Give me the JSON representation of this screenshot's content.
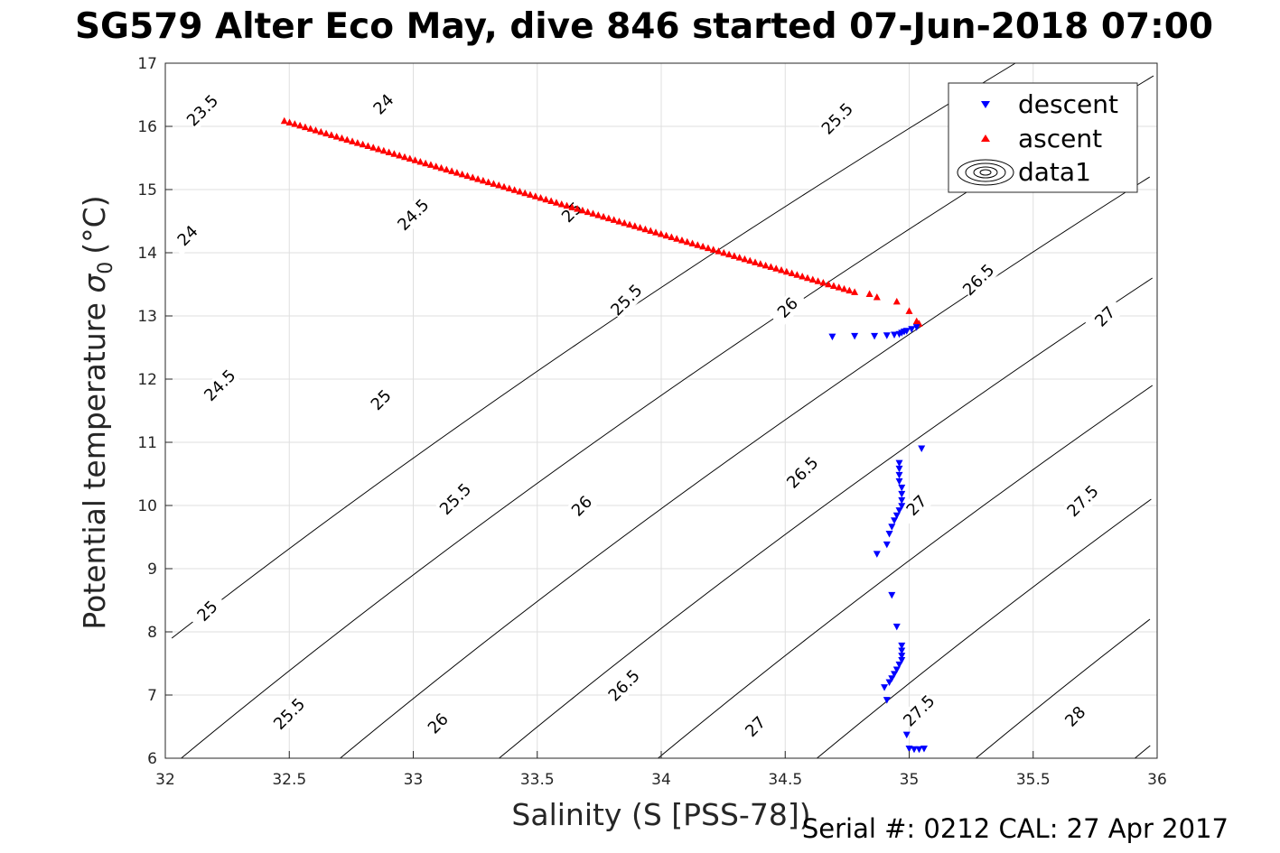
{
  "title": "SG579 Alter Eco May, dive 846 started 07-Jun-2018 07:00",
  "footer": "Serial #: 0212  CAL: 27 Apr 2017",
  "chart_data": {
    "type": "scatter",
    "title": "SG579 Alter Eco May, dive 846 started 07-Jun-2018 07:00",
    "xlabel": "Salinity (S [PSS-78])",
    "ylabel": "Potential temperature",
    "ylabel_symbol": "σ",
    "ylabel_subscript": "0",
    "ylabel_unit": "(°C)",
    "xlim": [
      32,
      36
    ],
    "ylim": [
      6,
      17
    ],
    "xticks": [
      32,
      32.5,
      33,
      33.5,
      34,
      34.5,
      35,
      35.5,
      36
    ],
    "yticks": [
      6,
      7,
      8,
      9,
      10,
      11,
      12,
      13,
      14,
      15,
      16,
      17
    ],
    "grid": true,
    "legend_position": "top-right",
    "legend": [
      "descent",
      "ascent",
      "data1"
    ],
    "colors": {
      "descent": "#0000ff",
      "ascent": "#ff0000",
      "contour": "#000000",
      "grid": "#dfdfdf"
    },
    "series": [
      {
        "name": "descent",
        "marker": "triangle-down",
        "points": [
          [
            34.69,
            12.67
          ],
          [
            34.78,
            12.68
          ],
          [
            34.86,
            12.68
          ],
          [
            34.91,
            12.69
          ],
          [
            34.94,
            12.7
          ],
          [
            34.96,
            12.71
          ],
          [
            34.97,
            12.73
          ],
          [
            34.98,
            12.75
          ],
          [
            34.99,
            12.76
          ],
          [
            35.01,
            12.79
          ],
          [
            35.03,
            12.82
          ],
          [
            35.05,
            10.9
          ],
          [
            34.96,
            10.67
          ],
          [
            34.96,
            10.58
          ],
          [
            34.96,
            10.48
          ],
          [
            34.96,
            10.38
          ],
          [
            34.97,
            10.28
          ],
          [
            34.97,
            10.18
          ],
          [
            34.97,
            10.08
          ],
          [
            34.97,
            9.99
          ],
          [
            34.96,
            9.92
          ],
          [
            34.95,
            9.84
          ],
          [
            34.94,
            9.76
          ],
          [
            34.93,
            9.66
          ],
          [
            34.92,
            9.55
          ],
          [
            34.91,
            9.38
          ],
          [
            34.87,
            9.23
          ],
          [
            34.93,
            8.58
          ],
          [
            34.95,
            8.08
          ],
          [
            34.97,
            7.78
          ],
          [
            34.97,
            7.7
          ],
          [
            34.97,
            7.62
          ],
          [
            34.97,
            7.55
          ],
          [
            34.96,
            7.48
          ],
          [
            34.95,
            7.4
          ],
          [
            34.94,
            7.33
          ],
          [
            34.93,
            7.26
          ],
          [
            34.92,
            7.2
          ],
          [
            34.9,
            7.12
          ],
          [
            34.91,
            6.92
          ],
          [
            34.99,
            6.37
          ],
          [
            35.0,
            6.15
          ],
          [
            35.02,
            6.14
          ],
          [
            35.04,
            6.14
          ],
          [
            35.06,
            6.15
          ]
        ]
      },
      {
        "name": "ascent",
        "marker": "triangle-up",
        "points_note_omitted": true,
        "line_start": [
          32.48,
          16.09
        ],
        "line_end": [
          34.78,
          13.38
        ],
        "line_count": 110,
        "extra_points": [
          [
            34.84,
            13.35
          ],
          [
            34.87,
            13.3
          ],
          [
            34.95,
            13.23
          ],
          [
            35.0,
            13.08
          ],
          [
            35.03,
            12.92
          ],
          [
            35.04,
            12.88
          ]
        ]
      }
    ],
    "contours": {
      "name": "data1",
      "levels": [
        23.5,
        24,
        24.5,
        25,
        25.5,
        26,
        26.5,
        27,
        27.5,
        28
      ],
      "labels": [
        {
          "text": "23.5",
          "s": 32.15,
          "t": 16.25
        },
        {
          "text": "24",
          "s": 32.88,
          "t": 16.35
        },
        {
          "text": "25.5",
          "s": 34.71,
          "t": 16.12
        },
        {
          "text": "24.5",
          "s": 33.0,
          "t": 14.6
        },
        {
          "text": "25",
          "s": 33.64,
          "t": 14.64
        },
        {
          "text": "24",
          "s": 32.09,
          "t": 14.27
        },
        {
          "text": "26.5",
          "s": 35.28,
          "t": 13.57
        },
        {
          "text": "25.5",
          "s": 33.86,
          "t": 13.25
        },
        {
          "text": "26",
          "s": 34.51,
          "t": 13.13
        },
        {
          "text": "27",
          "s": 35.79,
          "t": 12.99
        },
        {
          "text": "24.5",
          "s": 32.22,
          "t": 11.9
        },
        {
          "text": "25",
          "s": 32.87,
          "t": 11.67
        },
        {
          "text": "26.5",
          "s": 34.57,
          "t": 10.52
        },
        {
          "text": "25.5",
          "s": 33.17,
          "t": 10.1
        },
        {
          "text": "27",
          "s": 35.03,
          "t": 10.0
        },
        {
          "text": "26",
          "s": 33.68,
          "t": 9.99
        },
        {
          "text": "27.5",
          "s": 35.7,
          "t": 10.07
        },
        {
          "text": "25",
          "s": 32.17,
          "t": 8.33
        },
        {
          "text": "26.5",
          "s": 33.85,
          "t": 7.15
        },
        {
          "text": "25.5",
          "s": 32.5,
          "t": 6.7
        },
        {
          "text": "26",
          "s": 33.1,
          "t": 6.55
        },
        {
          "text": "27",
          "s": 34.38,
          "t": 6.5
        },
        {
          "text": "27.5",
          "s": 35.04,
          "t": 6.75
        },
        {
          "text": "28",
          "s": 35.67,
          "t": 6.66
        }
      ]
    }
  }
}
